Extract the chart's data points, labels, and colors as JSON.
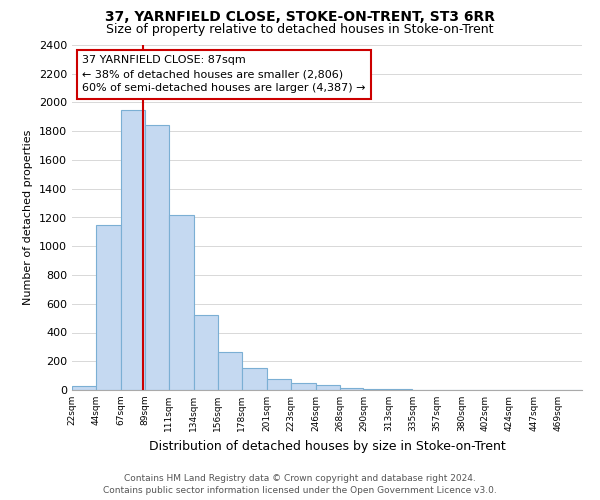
{
  "title": "37, YARNFIELD CLOSE, STOKE-ON-TRENT, ST3 6RR",
  "subtitle": "Size of property relative to detached houses in Stoke-on-Trent",
  "xlabel": "Distribution of detached houses by size in Stoke-on-Trent",
  "ylabel": "Number of detached properties",
  "bin_labels": [
    "22sqm",
    "44sqm",
    "67sqm",
    "89sqm",
    "111sqm",
    "134sqm",
    "156sqm",
    "178sqm",
    "201sqm",
    "223sqm",
    "246sqm",
    "268sqm",
    "290sqm",
    "313sqm",
    "335sqm",
    "357sqm",
    "380sqm",
    "402sqm",
    "424sqm",
    "447sqm",
    "469sqm"
  ],
  "bar_values": [
    25,
    1150,
    1950,
    1840,
    1220,
    520,
    265,
    150,
    80,
    50,
    35,
    15,
    8,
    4,
    2,
    1,
    1,
    0,
    0,
    0,
    0
  ],
  "bar_color": "#c5d9f1",
  "bar_edge_color": "#7bafd4",
  "vline_x": 87,
  "vline_color": "#cc0000",
  "ylim": [
    0,
    2400
  ],
  "yticks": [
    0,
    200,
    400,
    600,
    800,
    1000,
    1200,
    1400,
    1600,
    1800,
    2000,
    2200,
    2400
  ],
  "annotation_title": "37 YARNFIELD CLOSE: 87sqm",
  "annotation_line1": "← 38% of detached houses are smaller (2,806)",
  "annotation_line2": "60% of semi-detached houses are larger (4,387) →",
  "annotation_box_color": "#ffffff",
  "annotation_box_edge": "#cc0000",
  "footer1": "Contains HM Land Registry data © Crown copyright and database right 2024.",
  "footer2": "Contains public sector information licensed under the Open Government Licence v3.0.",
  "bin_edges": [
    22,
    44,
    67,
    89,
    111,
    134,
    156,
    178,
    201,
    223,
    246,
    268,
    290,
    313,
    335,
    357,
    380,
    402,
    424,
    447,
    469,
    491
  ],
  "title_fontsize": 10,
  "subtitle_fontsize": 9,
  "background_color": "#ffffff",
  "grid_color": "#d8d8d8"
}
